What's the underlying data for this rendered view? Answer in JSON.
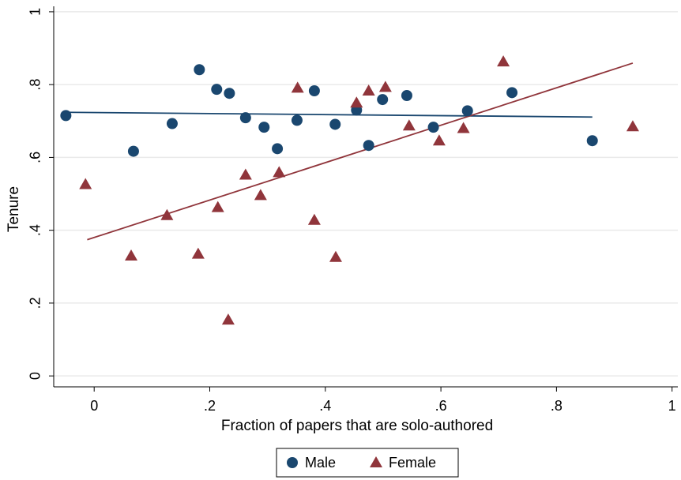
{
  "chart_data": {
    "type": "scatter",
    "x_label": "Fraction of papers that are solo-authored",
    "y_label": "Tenure",
    "xlim": [
      -0.07,
      1.01
    ],
    "ylim": [
      -0.03,
      1.015
    ],
    "xticks": [
      0,
      {
        "value": 0.2,
        "label": ".2"
      },
      {
        "value": 0.4,
        "label": ".4"
      },
      {
        "value": 0.6,
        "label": ".6"
      },
      {
        "value": 0.8,
        "label": ".8"
      },
      1
    ],
    "yticks": [
      0,
      {
        "value": 0.2,
        "label": ".2"
      },
      {
        "value": 0.4,
        "label": ".4"
      },
      {
        "value": 0.6,
        "label": ".6"
      },
      {
        "value": 0.8,
        "label": ".8"
      },
      1
    ],
    "grid": true,
    "legend": "bottom",
    "series": [
      {
        "name": "Male",
        "color": "#1a476f",
        "marker": "circle",
        "x": [
          -0.049,
          0.068,
          0.135,
          0.182,
          0.212,
          0.234,
          0.262,
          0.294,
          0.317,
          0.351,
          0.381,
          0.417,
          0.454,
          0.475,
          0.499,
          0.541,
          0.587,
          0.646,
          0.723,
          0.862
        ],
        "values": [
          0.715,
          0.617,
          0.693,
          0.841,
          0.787,
          0.776,
          0.709,
          0.683,
          0.624,
          0.702,
          0.783,
          0.691,
          0.73,
          0.633,
          0.759,
          0.77,
          0.683,
          0.728,
          0.778,
          0.646
        ]
      },
      {
        "name": "Female",
        "color": "#90353b",
        "marker": "triangle",
        "x": [
          -0.015,
          0.064,
          0.126,
          0.18,
          0.214,
          0.232,
          0.262,
          0.288,
          0.32,
          0.352,
          0.381,
          0.418,
          0.454,
          0.475,
          0.504,
          0.545,
          0.597,
          0.639,
          0.708,
          0.932
        ],
        "values": [
          0.526,
          0.33,
          0.441,
          0.335,
          0.463,
          0.154,
          0.552,
          0.496,
          0.559,
          0.791,
          0.428,
          0.326,
          0.75,
          0.783,
          0.793,
          0.687,
          0.646,
          0.68,
          0.863,
          0.685
        ]
      }
    ],
    "fit_lines": [
      {
        "color": "#1a476f",
        "x": [
          -0.049,
          0.862
        ],
        "values": [
          0.724,
          0.711
        ]
      },
      {
        "color": "#90353b",
        "x": [
          -0.012,
          0.932
        ],
        "values": [
          0.374,
          0.859
        ]
      }
    ]
  }
}
